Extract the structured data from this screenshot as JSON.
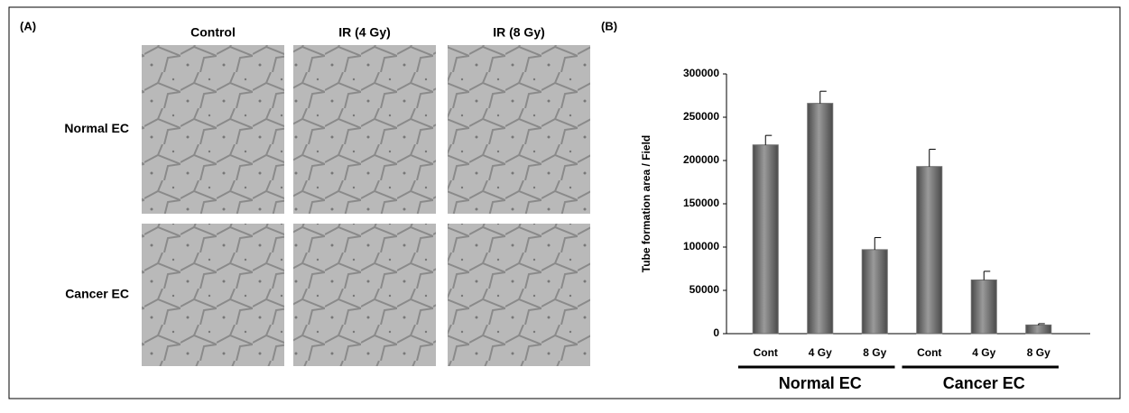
{
  "panel_a": {
    "label": "(A)",
    "columns": [
      "Control",
      "IR (4 Gy)",
      "IR (8 Gy)"
    ],
    "rows": [
      "Normal EC",
      "Cancer EC"
    ]
  },
  "chart_data": {
    "type": "bar",
    "label": "(B)",
    "y_label": "Tube formation area / Field",
    "categories": [
      "Cont",
      "4 Gy",
      "8 Gy",
      "Cont",
      "4 Gy",
      "8 Gy"
    ],
    "values": [
      218000,
      266000,
      97000,
      193000,
      62000,
      10000
    ],
    "errors": [
      11000,
      14000,
      14000,
      20000,
      10000,
      1500
    ],
    "groups": [
      {
        "name": "Normal EC",
        "size": 3
      },
      {
        "name": "Cancer EC",
        "size": 3
      }
    ],
    "color": "#6e6e6e",
    "ylim": [
      0,
      300000
    ],
    "yticks": [
      0,
      50000,
      100000,
      150000,
      200000,
      250000,
      300000
    ]
  }
}
